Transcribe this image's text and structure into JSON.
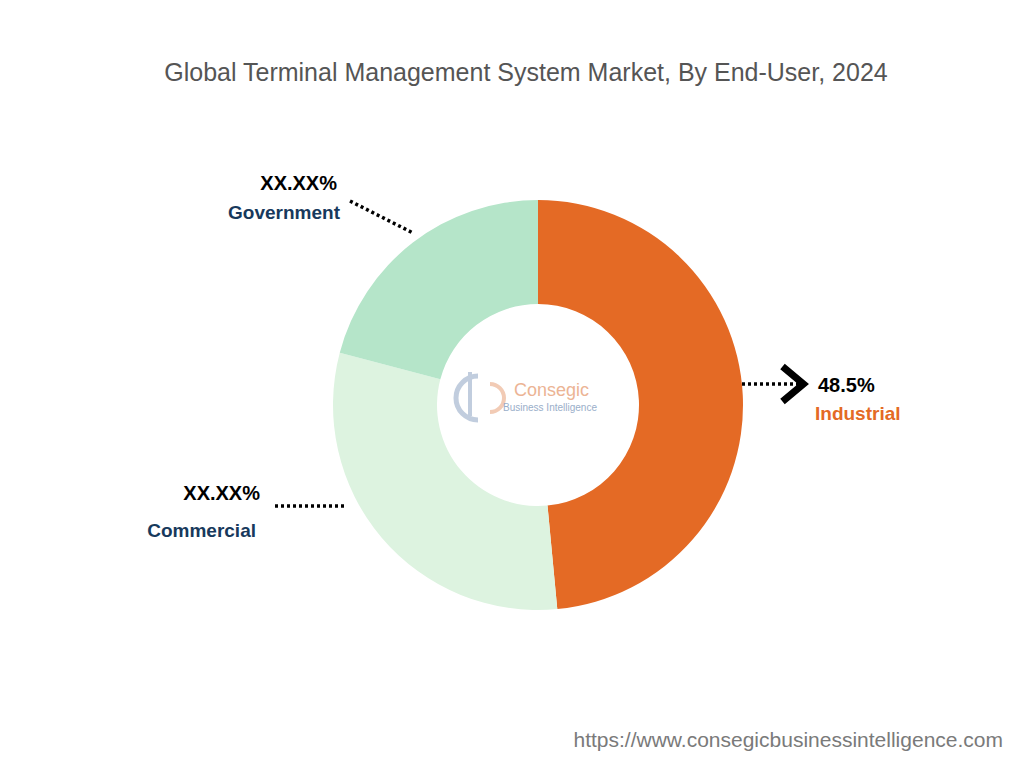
{
  "chart_data": {
    "type": "pie",
    "title": "Global Terminal Management System Market, By End-User, 2024",
    "categories": [
      "Industrial",
      "Commercial",
      "Government"
    ],
    "values": [
      48.5,
      30.6,
      20.9
    ],
    "value_labels": [
      "48.5%",
      "XX.XX%",
      "XX.XX%"
    ],
    "colors": [
      "#e46a25",
      "#ddf3e0",
      "#b5e5c9"
    ],
    "data_labels": true,
    "annotations": [
      "Consegic",
      "Business Intelligence",
      "https://www.consegicbusinessintelligence.com"
    ]
  }
}
